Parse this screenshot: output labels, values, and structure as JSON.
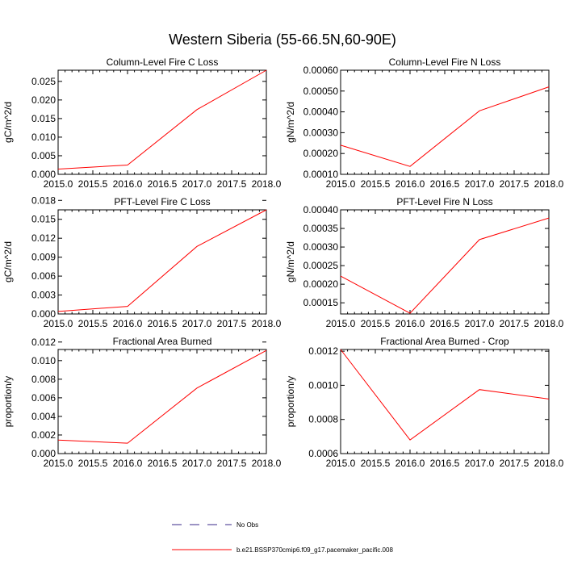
{
  "title": "Western Siberia (55-66.5N,60-90E)",
  "chart_data": [
    {
      "type": "line",
      "title": "Column-Level Fire C Loss",
      "ylabel": "gC/m^2/d",
      "xlim": [
        2015.0,
        2018.0
      ],
      "ylim": [
        0.0,
        0.028
      ],
      "xticks": [
        2015.0,
        2015.5,
        2016.0,
        2016.5,
        2017.0,
        2017.5,
        2018.0
      ],
      "xtick_labels": [
        "2015.0",
        "2015.5",
        "2016.0",
        "2016.5",
        "2017.0",
        "2017.5",
        "2018.0"
      ],
      "yticks": [
        0.0,
        0.005,
        0.01,
        0.015,
        0.02,
        0.025
      ],
      "ytick_labels": [
        "0.000",
        "0.005",
        "0.010",
        "0.015",
        "0.020",
        "0.025"
      ],
      "series": [
        {
          "x": [
            2015,
            2016,
            2017,
            2018
          ],
          "values": [
            0.0014,
            0.0025,
            0.0174,
            0.028
          ],
          "color": "#ff0000",
          "dash": "solid"
        }
      ]
    },
    {
      "type": "line",
      "title": "Column-Level Fire N Loss",
      "ylabel": "gN/m^2/d",
      "xlim": [
        2015.0,
        2018.0
      ],
      "ylim": [
        0.0001,
        0.0006
      ],
      "xticks": [
        2015.0,
        2015.5,
        2016.0,
        2016.5,
        2017.0,
        2017.5,
        2018.0
      ],
      "xtick_labels": [
        "2015.0",
        "2015.5",
        "2016.0",
        "2016.5",
        "2017.0",
        "2017.5",
        "2018.0"
      ],
      "yticks": [
        0.0001,
        0.0002,
        0.0003,
        0.0004,
        0.0005,
        0.0006
      ],
      "ytick_labels": [
        "0.00010",
        "0.00020",
        "0.00030",
        "0.00040",
        "0.00050",
        "0.00060"
      ],
      "series": [
        {
          "x": [
            2015,
            2016,
            2017,
            2018
          ],
          "values": [
            0.00024,
            0.000138,
            0.000405,
            0.00052
          ],
          "color": "#ff0000",
          "dash": "solid"
        }
      ]
    },
    {
      "type": "line",
      "title": "PFT-Level Fire C Loss",
      "ylabel": "gC/m^2/d",
      "xlim": [
        2015.0,
        2018.0
      ],
      "ylim": [
        0.0,
        0.0165
      ],
      "xticks": [
        2015.0,
        2015.5,
        2016.0,
        2016.5,
        2017.0,
        2017.5,
        2018.0
      ],
      "xtick_labels": [
        "2015.0",
        "2015.5",
        "2016.0",
        "2016.5",
        "2017.0",
        "2017.5",
        "2018.0"
      ],
      "yticks": [
        0.0,
        0.003,
        0.006,
        0.009,
        0.012,
        0.015,
        0.018
      ],
      "ytick_labels": [
        "0.000",
        "0.003",
        "0.006",
        "0.009",
        "0.012",
        "0.015",
        "0.018"
      ],
      "series": [
        {
          "x": [
            2015,
            2016,
            2017,
            2018
          ],
          "values": [
            0.0004,
            0.0012,
            0.0107,
            0.0165
          ],
          "color": "#ff0000",
          "dash": "solid"
        }
      ]
    },
    {
      "type": "line",
      "title": "PFT-Level Fire N Loss",
      "ylabel": "gN/m^2/d",
      "xlim": [
        2015.0,
        2018.0
      ],
      "ylim": [
        0.00012,
        0.0004
      ],
      "xticks": [
        2015.0,
        2015.5,
        2016.0,
        2016.5,
        2017.0,
        2017.5,
        2018.0
      ],
      "xtick_labels": [
        "2015.0",
        "2015.5",
        "2016.0",
        "2016.5",
        "2017.0",
        "2017.5",
        "2018.0"
      ],
      "yticks": [
        0.00015,
        0.0002,
        0.00025,
        0.0003,
        0.00035,
        0.0004
      ],
      "ytick_labels": [
        "0.00015",
        "0.00020",
        "0.00025",
        "0.00030",
        "0.00035",
        "0.00040"
      ],
      "series": [
        {
          "x": [
            2015,
            2016,
            2017,
            2018
          ],
          "values": [
            0.000222,
            0.000122,
            0.00032,
            0.000378
          ],
          "color": "#ff0000",
          "dash": "solid"
        }
      ]
    },
    {
      "type": "line",
      "title": "Fractional Area Burned",
      "ylabel": "proportion/y",
      "xlim": [
        2015.0,
        2018.0
      ],
      "ylim": [
        0.0,
        0.0112
      ],
      "xticks": [
        2015.0,
        2015.5,
        2016.0,
        2016.5,
        2017.0,
        2017.5,
        2018.0
      ],
      "xtick_labels": [
        "2015.0",
        "2015.5",
        "2016.0",
        "2016.5",
        "2017.0",
        "2017.5",
        "2018.0"
      ],
      "yticks": [
        0.0,
        0.002,
        0.004,
        0.006,
        0.008,
        0.01,
        0.012
      ],
      "ytick_labels": [
        "0.000",
        "0.002",
        "0.004",
        "0.006",
        "0.008",
        "0.010",
        "0.012"
      ],
      "series": [
        {
          "x": [
            2015,
            2016,
            2017,
            2018
          ],
          "values": [
            0.00145,
            0.00112,
            0.00705,
            0.0111
          ],
          "color": "#ff0000",
          "dash": "solid"
        }
      ]
    },
    {
      "type": "line",
      "title": "Fractional Area Burned - Crop",
      "ylabel": "proportion/y",
      "xlim": [
        2015.0,
        2018.0
      ],
      "ylim": [
        0.0006,
        0.00121
      ],
      "xticks": [
        2015.0,
        2015.5,
        2016.0,
        2016.5,
        2017.0,
        2017.5,
        2018.0
      ],
      "xtick_labels": [
        "2015.0",
        "2015.5",
        "2016.0",
        "2016.5",
        "2017.0",
        "2017.5",
        "2018.0"
      ],
      "yticks": [
        0.0006,
        0.0008,
        0.001,
        0.0012
      ],
      "ytick_labels": [
        "0.0006",
        "0.0008",
        "0.0010",
        "0.0012"
      ],
      "series": [
        {
          "x": [
            2015,
            2016,
            2017,
            2018
          ],
          "values": [
            0.00121,
            0.00068,
            0.000975,
            0.00092
          ],
          "color": "#ff0000",
          "dash": "solid"
        }
      ]
    }
  ],
  "legend": {
    "placement": "bottom-center",
    "entries": [
      {
        "label": "No Obs",
        "color": "#3a2a8a",
        "dash": "dashed"
      },
      {
        "label": "b.e21.BSSP370cmip6.f09_g17.pacemaker_pacific.008",
        "color": "#ff0000",
        "dash": "solid"
      }
    ]
  }
}
